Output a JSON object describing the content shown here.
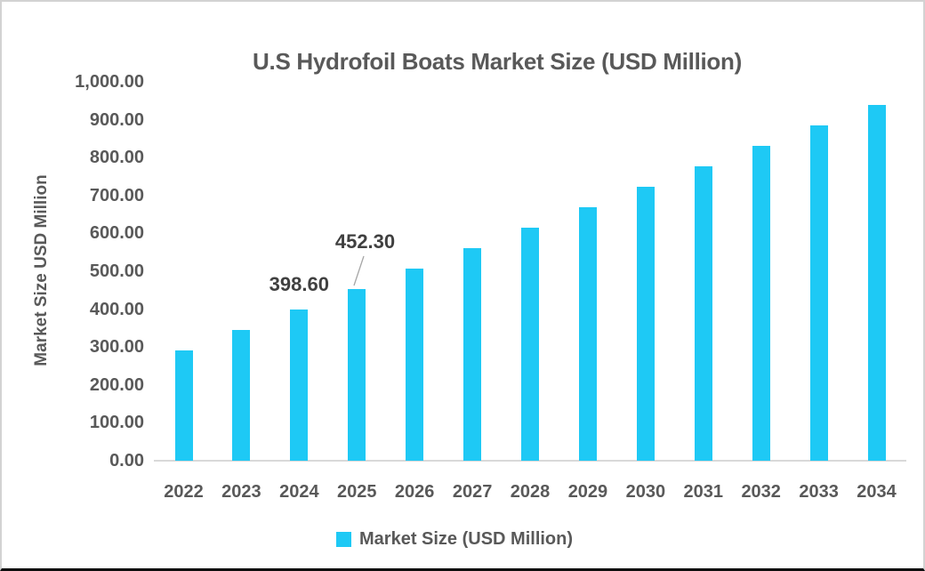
{
  "chart_data": {
    "type": "bar",
    "title": "U.S Hydrofoil Boats Market Size (USD Million)",
    "ylabel": "Market Size USD Million",
    "xlabel": "",
    "categories": [
      "2022",
      "2023",
      "2024",
      "2025",
      "2026",
      "2027",
      "2028",
      "2029",
      "2030",
      "2031",
      "2032",
      "2033",
      "2034"
    ],
    "series": [
      {
        "name": "Market Size (USD Million)",
        "values": [
          291.0,
          345.9,
          398.6,
          452.3,
          508.2,
          560.4,
          615.9,
          669.8,
          722.9,
          777.5,
          831.4,
          884.5,
          939.8
        ]
      }
    ],
    "labeled_points": [
      {
        "category": "2024",
        "label": "398.60"
      },
      {
        "category": "2025",
        "label": "452.30"
      }
    ],
    "ylim": [
      0,
      1000
    ],
    "ytick_step": 100,
    "ytick_labels": [
      "0.00",
      "100.00",
      "200.00",
      "300.00",
      "400.00",
      "500.00",
      "600.00",
      "700.00",
      "800.00",
      "900.00",
      "1,000.00"
    ],
    "grid": false,
    "legend_position": "bottom",
    "colors": {
      "bar": "#1EC9F5",
      "axis_text": "#595959",
      "title_text": "#595959",
      "data_label_text": "#404040",
      "axis_line": "#D9D9D9",
      "leader_line": "#A6A6A6"
    }
  }
}
